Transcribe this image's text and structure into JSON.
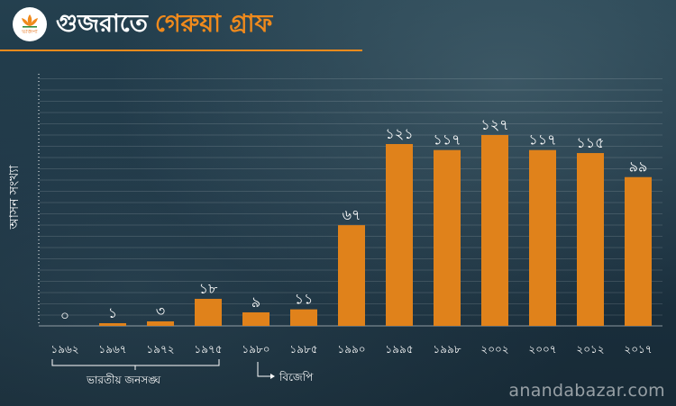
{
  "header": {
    "title_part1": "গুজরাতে",
    "title_part2": "গেরুয়া গ্রাফ",
    "logo_text": "ভাজপা"
  },
  "watermark": "anandabazar.com",
  "groups": {
    "jana_sangh": "ভারতীয় জনসঙ্ঘ",
    "bjp": "বিজেপি"
  },
  "colors": {
    "bar": "#e0821b",
    "accent": "#f08a1c",
    "text": "#ffffff"
  },
  "chart_data": {
    "type": "bar",
    "ylabel": "আসন সংখ্যা",
    "categories": [
      "১৯৬২",
      "১৯৬৭",
      "১৯৭২",
      "১৯৭৫",
      "১৯৮০",
      "১৯৮৫",
      "১৯৯০",
      "১৯৯৫",
      "১৯৯৮",
      "২০০২",
      "২০০৭",
      "২০১২",
      "২০১৭"
    ],
    "values": [
      0,
      1,
      3,
      18,
      9,
      11,
      67,
      121,
      117,
      127,
      117,
      115,
      99
    ],
    "value_labels": [
      "০",
      "১",
      "৩",
      "১৮",
      "৯",
      "১১",
      "৬৭",
      "১২১",
      "১১৭",
      "১২৭",
      "১১৭",
      "১১৫",
      "৯৯"
    ],
    "ylim": [
      0,
      135
    ],
    "grid": true
  }
}
